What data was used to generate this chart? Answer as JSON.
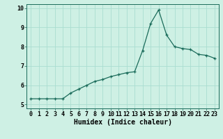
{
  "x": [
    0,
    1,
    2,
    3,
    4,
    5,
    6,
    7,
    8,
    9,
    10,
    11,
    12,
    13,
    14,
    15,
    16,
    17,
    18,
    19,
    20,
    21,
    22,
    23
  ],
  "y": [
    5.3,
    5.3,
    5.3,
    5.3,
    5.3,
    5.6,
    5.8,
    6.0,
    6.2,
    6.3,
    6.45,
    6.55,
    6.65,
    6.7,
    7.8,
    9.2,
    9.9,
    8.6,
    8.0,
    7.9,
    7.85,
    7.6,
    7.55,
    7.4
  ],
  "title": "",
  "xlabel": "Humidex (Indice chaleur)",
  "ylabel": "",
  "xlim": [
    -0.5,
    23.5
  ],
  "ylim": [
    4.8,
    10.2
  ],
  "yticks": [
    5,
    6,
    7,
    8,
    9,
    10
  ],
  "xticks": [
    0,
    1,
    2,
    3,
    4,
    5,
    6,
    7,
    8,
    9,
    10,
    11,
    12,
    13,
    14,
    15,
    16,
    17,
    18,
    19,
    20,
    21,
    22,
    23
  ],
  "line_color": "#1a6b5a",
  "marker_color": "#1a6b5a",
  "bg_color": "#cef0e4",
  "grid_color": "#aaddd0",
  "label_fontsize": 7,
  "tick_fontsize": 6
}
